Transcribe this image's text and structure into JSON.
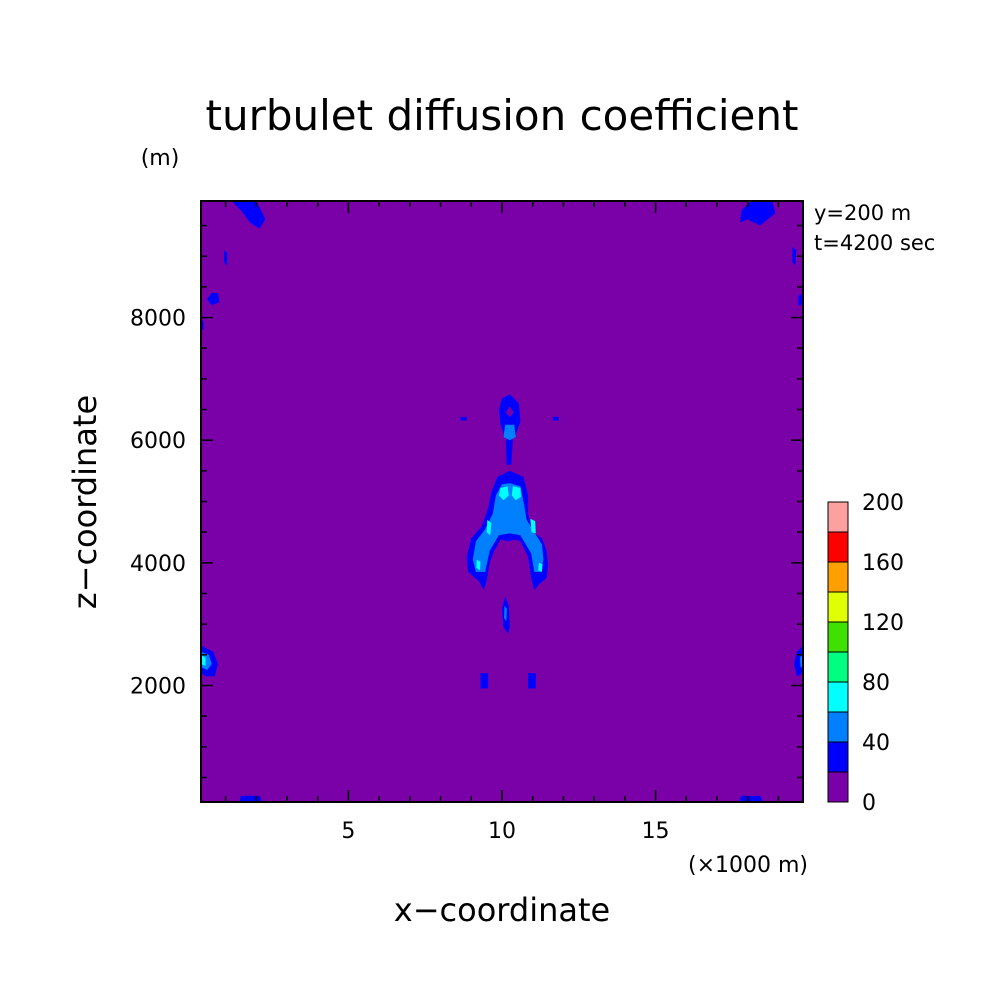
{
  "chart_data": {
    "type": "heatmap",
    "title": "turbulet diffusion coefficient",
    "xlabel": "x−coordinate",
    "ylabel": "z−coordinate",
    "x_unit": "(×1000 m)",
    "y_unit": "(m)",
    "annotations": [
      "y=200 m",
      "t=4200 sec"
    ],
    "xlim": [
      0.2,
      19.8
    ],
    "ylim": [
      100,
      9900
    ],
    "x_ticks": [
      5,
      10,
      15
    ],
    "y_ticks": [
      2000,
      4000,
      6000,
      8000
    ],
    "grid": false,
    "colorbar": {
      "location": "right",
      "levels": [
        0,
        20,
        40,
        60,
        80,
        100,
        120,
        140,
        160,
        180,
        200
      ],
      "tick_labels": [
        "0",
        "40",
        "80",
        "120",
        "160",
        "200"
      ],
      "tick_values": [
        0,
        40,
        80,
        120,
        160,
        200
      ],
      "colors": [
        "#7a00a8",
        "#0000ff",
        "#0080ff",
        "#00ffff",
        "#00ff80",
        "#40e000",
        "#e0ff00",
        "#ffa000",
        "#ff0000",
        "#ffa0a0"
      ]
    },
    "background_level": 0,
    "regions": [
      {
        "level": 1,
        "points": [
          [
            10.25,
            6.75
          ],
          [
            10.55,
            6.6
          ],
          [
            10.6,
            6.3
          ],
          [
            10.45,
            6.1
          ],
          [
            10.25,
            5.95
          ],
          [
            10.1,
            6.05
          ],
          [
            9.95,
            6.25
          ],
          [
            9.9,
            6.5
          ],
          [
            10.0,
            6.68
          ]
        ]
      },
      {
        "level": 0,
        "points": [
          [
            10.25,
            6.55
          ],
          [
            10.38,
            6.45
          ],
          [
            10.25,
            6.38
          ],
          [
            10.12,
            6.45
          ]
        ]
      },
      {
        "level": 1,
        "points": [
          [
            10.12,
            6.0
          ],
          [
            10.35,
            6.0
          ],
          [
            10.3,
            5.6
          ],
          [
            10.15,
            5.6
          ]
        ]
      },
      {
        "level": 1,
        "points": [
          [
            10.25,
            5.5
          ],
          [
            10.7,
            5.4
          ],
          [
            10.85,
            5.1
          ],
          [
            10.85,
            4.8
          ],
          [
            11.0,
            4.5
          ],
          [
            11.3,
            4.4
          ],
          [
            11.45,
            4.2
          ],
          [
            11.5,
            3.95
          ],
          [
            11.45,
            3.75
          ],
          [
            11.2,
            3.65
          ],
          [
            11.05,
            3.55
          ],
          [
            10.95,
            3.75
          ],
          [
            10.85,
            4.1
          ],
          [
            10.6,
            4.35
          ],
          [
            10.4,
            4.38
          ],
          [
            10.2,
            4.35
          ],
          [
            9.95,
            4.38
          ],
          [
            9.75,
            4.2
          ],
          [
            9.6,
            4.0
          ],
          [
            9.5,
            3.7
          ],
          [
            9.4,
            3.55
          ],
          [
            9.25,
            3.7
          ],
          [
            8.9,
            3.85
          ],
          [
            8.85,
            4.1
          ],
          [
            9.0,
            4.4
          ],
          [
            9.35,
            4.6
          ],
          [
            9.55,
            4.9
          ],
          [
            9.65,
            5.15
          ],
          [
            9.85,
            5.4
          ]
        ]
      },
      {
        "level": 2,
        "points": [
          [
            10.25,
            5.3
          ],
          [
            10.6,
            5.25
          ],
          [
            10.7,
            5.0
          ],
          [
            10.8,
            4.7
          ],
          [
            11.05,
            4.5
          ],
          [
            11.3,
            4.3
          ],
          [
            11.35,
            4.05
          ],
          [
            11.25,
            3.85
          ],
          [
            11.05,
            3.85
          ],
          [
            10.95,
            4.15
          ],
          [
            10.6,
            4.45
          ],
          [
            10.25,
            4.48
          ],
          [
            9.9,
            4.45
          ],
          [
            9.6,
            4.2
          ],
          [
            9.45,
            3.85
          ],
          [
            9.15,
            3.85
          ],
          [
            9.05,
            4.05
          ],
          [
            9.15,
            4.35
          ],
          [
            9.45,
            4.55
          ],
          [
            9.7,
            4.8
          ],
          [
            9.8,
            5.1
          ],
          [
            10.0,
            5.28
          ]
        ]
      },
      {
        "level": 2,
        "points": [
          [
            10.1,
            6.25
          ],
          [
            10.4,
            6.25
          ],
          [
            10.45,
            6.05
          ],
          [
            10.25,
            6.0
          ],
          [
            10.05,
            6.05
          ]
        ]
      },
      {
        "level": 3,
        "points": [
          [
            9.95,
            5.22
          ],
          [
            10.18,
            5.25
          ],
          [
            10.22,
            5.1
          ],
          [
            10.05,
            5.02
          ],
          [
            9.9,
            5.1
          ]
        ]
      },
      {
        "level": 3,
        "points": [
          [
            10.35,
            5.25
          ],
          [
            10.6,
            5.22
          ],
          [
            10.62,
            5.08
          ],
          [
            10.45,
            5.02
          ],
          [
            10.32,
            5.1
          ]
        ]
      },
      {
        "level": 3,
        "points": [
          [
            9.52,
            4.7
          ],
          [
            9.65,
            4.65
          ],
          [
            9.62,
            4.45
          ],
          [
            9.5,
            4.5
          ]
        ]
      },
      {
        "level": 3,
        "points": [
          [
            10.92,
            4.72
          ],
          [
            11.08,
            4.68
          ],
          [
            11.1,
            4.48
          ],
          [
            10.96,
            4.5
          ]
        ]
      },
      {
        "level": 3,
        "points": [
          [
            9.18,
            4.05
          ],
          [
            9.3,
            4.02
          ],
          [
            9.28,
            3.88
          ],
          [
            9.16,
            3.92
          ]
        ]
      },
      {
        "level": 3,
        "points": [
          [
            11.2,
            4.0
          ],
          [
            11.32,
            3.98
          ],
          [
            11.3,
            3.85
          ],
          [
            11.18,
            3.88
          ]
        ]
      },
      {
        "level": 1,
        "points": [
          [
            10.1,
            3.45
          ],
          [
            10.22,
            3.3
          ],
          [
            10.25,
            2.95
          ],
          [
            10.2,
            2.85
          ],
          [
            10.05,
            2.95
          ],
          [
            10.0,
            3.25
          ]
        ]
      },
      {
        "level": 2,
        "points": [
          [
            10.08,
            3.3
          ],
          [
            10.16,
            3.25
          ],
          [
            10.14,
            3.05
          ],
          [
            10.07,
            3.1
          ]
        ]
      },
      {
        "level": 1,
        "points": [
          [
            9.3,
            2.2
          ],
          [
            9.55,
            2.2
          ],
          [
            9.55,
            1.95
          ],
          [
            9.3,
            1.95
          ]
        ]
      },
      {
        "level": 1,
        "points": [
          [
            10.85,
            2.2
          ],
          [
            11.1,
            2.2
          ],
          [
            11.1,
            1.95
          ],
          [
            10.85,
            1.95
          ]
        ]
      },
      {
        "level": 1,
        "points": [
          [
            0.2,
            2.65
          ],
          [
            0.6,
            2.55
          ],
          [
            0.75,
            2.35
          ],
          [
            0.65,
            2.15
          ],
          [
            0.35,
            2.15
          ],
          [
            0.2,
            2.2
          ]
        ]
      },
      {
        "level": 2,
        "points": [
          [
            0.2,
            2.55
          ],
          [
            0.45,
            2.5
          ],
          [
            0.55,
            2.35
          ],
          [
            0.4,
            2.25
          ],
          [
            0.2,
            2.3
          ]
        ]
      },
      {
        "level": 3,
        "points": [
          [
            0.2,
            2.5
          ],
          [
            0.35,
            2.45
          ],
          [
            0.35,
            2.32
          ],
          [
            0.2,
            2.35
          ]
        ]
      },
      {
        "level": 1,
        "points": [
          [
            19.8,
            2.65
          ],
          [
            19.6,
            2.55
          ],
          [
            19.5,
            2.35
          ],
          [
            19.6,
            2.15
          ],
          [
            19.8,
            2.2
          ]
        ]
      },
      {
        "level": 2,
        "points": [
          [
            19.8,
            2.55
          ],
          [
            19.7,
            2.45
          ],
          [
            19.72,
            2.3
          ],
          [
            19.8,
            2.3
          ]
        ]
      },
      {
        "level": 1,
        "points": [
          [
            1.2,
            9.9
          ],
          [
            2.0,
            9.9
          ],
          [
            2.3,
            9.6
          ],
          [
            2.1,
            9.45
          ],
          [
            1.8,
            9.55
          ],
          [
            1.5,
            9.75
          ]
        ]
      },
      {
        "level": 1,
        "points": [
          [
            18.1,
            9.9
          ],
          [
            18.8,
            9.9
          ],
          [
            18.9,
            9.7
          ],
          [
            18.4,
            9.5
          ],
          [
            18.0,
            9.6
          ],
          [
            17.75,
            9.55
          ],
          [
            17.8,
            9.75
          ]
        ]
      },
      {
        "level": 1,
        "points": [
          [
            0.55,
            8.4
          ],
          [
            0.75,
            8.4
          ],
          [
            0.8,
            8.25
          ],
          [
            0.55,
            8.2
          ],
          [
            0.4,
            8.3
          ]
        ]
      },
      {
        "level": 1,
        "points": [
          [
            19.8,
            8.4
          ],
          [
            19.65,
            8.35
          ],
          [
            19.65,
            8.2
          ],
          [
            19.8,
            8.2
          ]
        ]
      },
      {
        "level": 1,
        "points": [
          [
            0.95,
            9.1
          ],
          [
            1.05,
            9.05
          ],
          [
            1.05,
            8.85
          ],
          [
            0.95,
            8.9
          ]
        ]
      },
      {
        "level": 1,
        "points": [
          [
            19.45,
            9.15
          ],
          [
            19.58,
            9.1
          ],
          [
            19.55,
            8.85
          ],
          [
            19.45,
            8.9
          ]
        ]
      },
      {
        "level": 1,
        "points": [
          [
            1.5,
            0.2
          ],
          [
            2.1,
            0.2
          ],
          [
            2.2,
            0.1
          ],
          [
            1.45,
            0.1
          ]
        ]
      },
      {
        "level": 1,
        "points": [
          [
            17.8,
            0.2
          ],
          [
            18.4,
            0.2
          ],
          [
            18.5,
            0.1
          ],
          [
            17.7,
            0.1
          ]
        ]
      },
      {
        "level": 1,
        "points": [
          [
            0.2,
            7.95
          ],
          [
            0.28,
            7.95
          ],
          [
            0.28,
            7.8
          ],
          [
            0.2,
            7.8
          ]
        ]
      },
      {
        "level": 1,
        "points": [
          [
            8.65,
            6.38
          ],
          [
            8.85,
            6.38
          ],
          [
            8.85,
            6.32
          ],
          [
            8.65,
            6.32
          ]
        ]
      },
      {
        "level": 1,
        "points": [
          [
            11.65,
            6.38
          ],
          [
            11.85,
            6.38
          ],
          [
            11.85,
            6.32
          ],
          [
            11.65,
            6.32
          ]
        ]
      }
    ]
  }
}
